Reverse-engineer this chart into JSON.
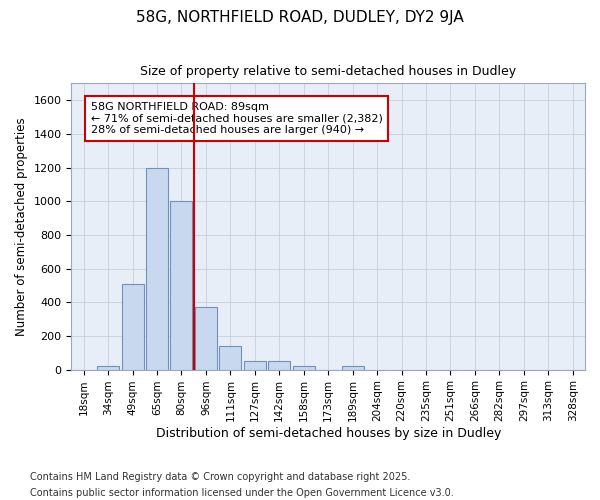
{
  "title1": "58G, NORTHFIELD ROAD, DUDLEY, DY2 9JA",
  "title2": "Size of property relative to semi-detached houses in Dudley",
  "xlabel": "Distribution of semi-detached houses by size in Dudley",
  "ylabel": "Number of semi-detached properties",
  "categories": [
    "18sqm",
    "34sqm",
    "49sqm",
    "65sqm",
    "80sqm",
    "96sqm",
    "111sqm",
    "127sqm",
    "142sqm",
    "158sqm",
    "173sqm",
    "189sqm",
    "204sqm",
    "220sqm",
    "235sqm",
    "251sqm",
    "266sqm",
    "282sqm",
    "297sqm",
    "313sqm",
    "328sqm"
  ],
  "values": [
    0,
    20,
    510,
    1200,
    1000,
    370,
    140,
    50,
    50,
    20,
    0,
    20,
    0,
    0,
    0,
    0,
    0,
    0,
    0,
    0,
    0
  ],
  "bar_color": "#c8d8ee",
  "bar_edge_color": "#7090c0",
  "annotation_line1": "58G NORTHFIELD ROAD: 89sqm",
  "annotation_line2": "← 71% of semi-detached houses are smaller (2,382)",
  "annotation_line3": "28% of semi-detached houses are larger (940) →",
  "annotation_box_color": "#cc0000",
  "vline_color": "#cc0000",
  "ylim": [
    0,
    1700
  ],
  "yticks": [
    0,
    200,
    400,
    600,
    800,
    1000,
    1200,
    1400,
    1600
  ],
  "footer1": "Contains HM Land Registry data © Crown copyright and database right 2025.",
  "footer2": "Contains public sector information licensed under the Open Government Licence v3.0.",
  "background_color": "#e8eef8"
}
